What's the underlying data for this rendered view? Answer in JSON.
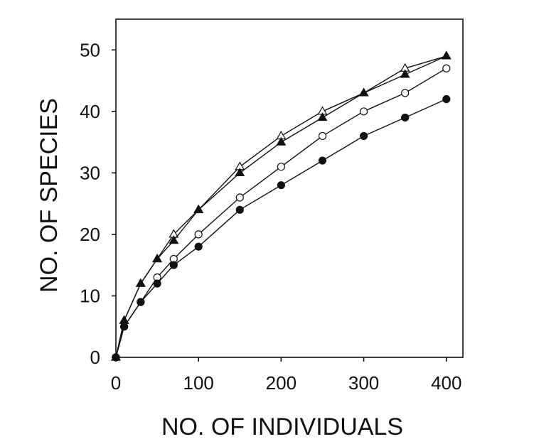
{
  "corner_text": "",
  "chart_data": {
    "type": "line",
    "title": "",
    "xlabel": "NO. OF INDIVIDUALS",
    "ylabel": "NO. OF SPECIES",
    "xlim": [
      0,
      420
    ],
    "ylim": [
      0,
      55
    ],
    "xticks": [
      0,
      100,
      200,
      300,
      400
    ],
    "yticks": [
      0,
      10,
      20,
      30,
      40,
      50
    ],
    "grid": false,
    "legend": "none",
    "series": [
      {
        "marker": "open-triangle",
        "x": [
          0,
          10,
          30,
          50,
          70,
          100,
          150,
          200,
          250,
          300,
          350,
          400
        ],
        "y": [
          0,
          6,
          12,
          16,
          20,
          24,
          31,
          36,
          40,
          43,
          47,
          49
        ]
      },
      {
        "marker": "filled-triangle",
        "x": [
          0,
          10,
          30,
          50,
          70,
          100,
          150,
          200,
          250,
          300,
          350,
          400
        ],
        "y": [
          0,
          6,
          12,
          16,
          19,
          24,
          30,
          35,
          39,
          43,
          46,
          49
        ]
      },
      {
        "marker": "open-circle",
        "x": [
          0,
          10,
          30,
          50,
          70,
          100,
          150,
          200,
          250,
          300,
          350,
          400
        ],
        "y": [
          0,
          5,
          9,
          13,
          16,
          20,
          26,
          31,
          36,
          40,
          43,
          47
        ]
      },
      {
        "marker": "filled-circle",
        "x": [
          0,
          10,
          30,
          50,
          70,
          100,
          150,
          200,
          250,
          300,
          350,
          400
        ],
        "y": [
          0,
          5,
          9,
          12,
          15,
          18,
          24,
          28,
          32,
          36,
          39,
          42
        ]
      }
    ],
    "colors": {
      "line": "#111111",
      "marker_fill": "#111111",
      "marker_open_fill": "#ffffff"
    }
  }
}
